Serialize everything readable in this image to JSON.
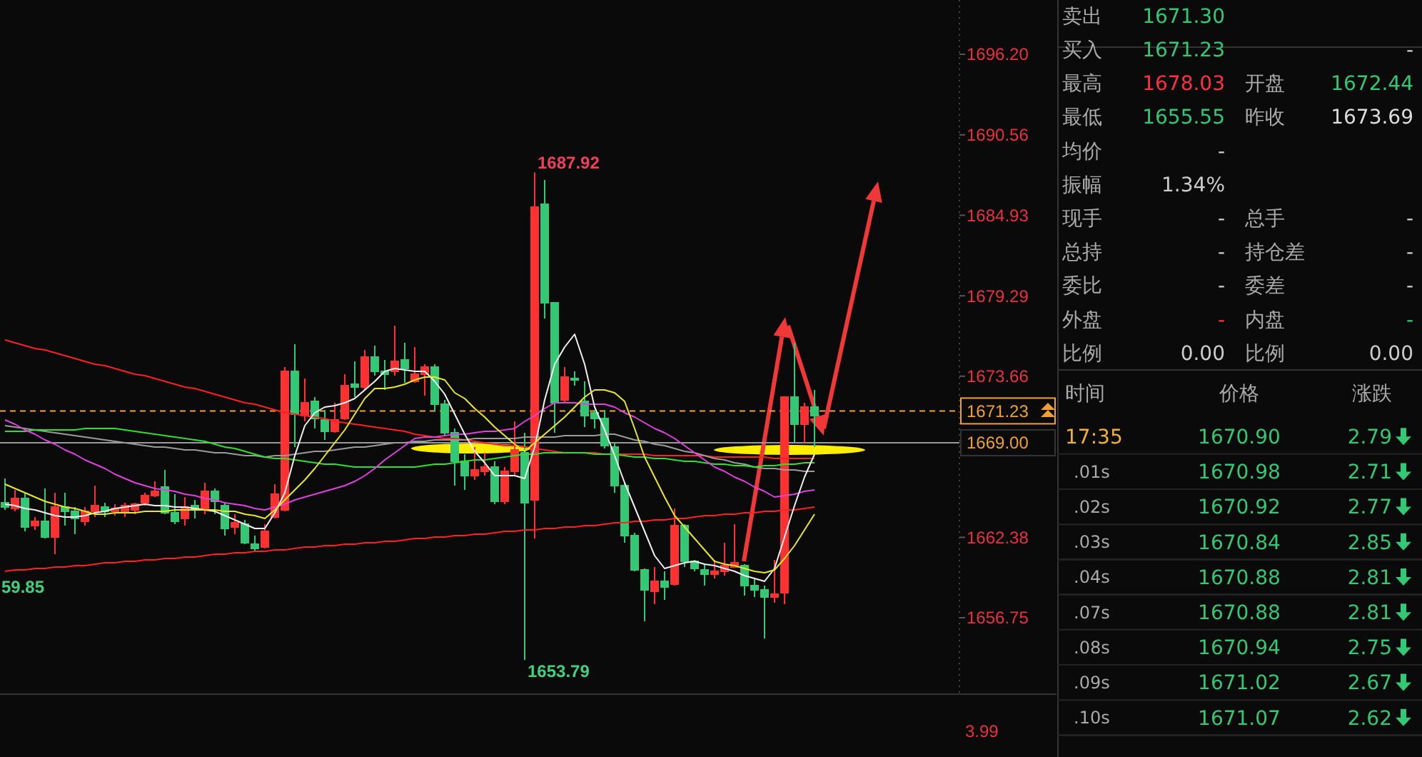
{
  "chart_data": [
    {
      "type": "candlestick",
      "categories": [
        null,
        null,
        null,
        null,
        null,
        null,
        null,
        null,
        null,
        null,
        null,
        null,
        null,
        null,
        null,
        null,
        null,
        null,
        null,
        null,
        null,
        null,
        null,
        null,
        null,
        null,
        null,
        null,
        null,
        null,
        null,
        null,
        null,
        null,
        null,
        null,
        null,
        null,
        null,
        null,
        null,
        null,
        null,
        null,
        null,
        null,
        null,
        null,
        null,
        null,
        null,
        null,
        null,
        null,
        null,
        null,
        null,
        null,
        null,
        null,
        null,
        null,
        null,
        null,
        null,
        null,
        null,
        null,
        null,
        null,
        null,
        null,
        null,
        null,
        null,
        null,
        null,
        null,
        null,
        null,
        null,
        null
      ],
      "ylim": [
        1651.5,
        1700
      ],
      "yticks": [
        {
          "value": 1696.2,
          "label": "1696.20"
        },
        {
          "value": 1690.56,
          "label": "1690.56"
        },
        {
          "value": 1684.93,
          "label": "1684.93"
        },
        {
          "value": 1679.29,
          "label": "1679.29"
        },
        {
          "value": 1673.66,
          "label": "1673.66"
        },
        {
          "value": 1662.38,
          "label": "1662.38"
        },
        {
          "value": 1656.75,
          "label": "1656.75"
        }
      ],
      "tick_labels": "y",
      "ohlc": [
        [
          1664.8,
          1666.5,
          1664.3,
          1664.5
        ],
        [
          1664.4,
          1665.7,
          1664.2,
          1665.1
        ],
        [
          1665.1,
          1665.5,
          1662.8,
          1663.1
        ],
        [
          1663.2,
          1663.8,
          1662.9,
          1663.5
        ],
        [
          1663.5,
          1665.8,
          1662.3,
          1662.4
        ],
        [
          1662.4,
          1665.5,
          1661.2,
          1664.5
        ],
        [
          1664.5,
          1665.5,
          1663.2,
          1664.2
        ],
        [
          1664.2,
          1664.5,
          1662.6,
          1663.7
        ],
        [
          1663.5,
          1664.5,
          1663.2,
          1664.2
        ],
        [
          1664.2,
          1666.0,
          1663.8,
          1664.6
        ],
        [
          1664.5,
          1664.8,
          1663.8,
          1664.2
        ],
        [
          1664.2,
          1664.7,
          1663.9,
          1664.4
        ],
        [
          1664.1,
          1664.8,
          1663.8,
          1664.6
        ],
        [
          1664.3,
          1664.8,
          1664.0,
          1664.7
        ],
        [
          1664.8,
          1665.5,
          1664.6,
          1665.3
        ],
        [
          1665.3,
          1666.3,
          1665.2,
          1665.6
        ],
        [
          1665.9,
          1667.1,
          1664.0,
          1664.1
        ],
        [
          1664.1,
          1665.4,
          1663.3,
          1663.5
        ],
        [
          1663.7,
          1665.2,
          1663.2,
          1664.5
        ],
        [
          1664.6,
          1665.0,
          1663.7,
          1664.3
        ],
        [
          1664.3,
          1666.2,
          1664.0,
          1665.6
        ],
        [
          1665.6,
          1665.8,
          1664.0,
          1664.9
        ],
        [
          1664.6,
          1664.8,
          1662.5,
          1663.0
        ],
        [
          1663.1,
          1664.0,
          1662.6,
          1663.4
        ],
        [
          1663.3,
          1663.6,
          1661.9,
          1662.0
        ],
        [
          1661.9,
          1662.5,
          1661.4,
          1661.6
        ],
        [
          1661.7,
          1663.3,
          1661.6,
          1662.8
        ],
        [
          1663.8,
          1666.1,
          1663.7,
          1665.4
        ],
        [
          1664.3,
          1674.3,
          1664.2,
          1674.0
        ],
        [
          1674.0,
          1675.9,
          1668.7,
          1671.0
        ],
        [
          1670.9,
          1673.5,
          1670.5,
          1671.8
        ],
        [
          1671.9,
          1672.2,
          1670.0,
          1670.7
        ],
        [
          1670.6,
          1671.3,
          1669.2,
          1669.8
        ],
        [
          1669.8,
          1671.8,
          1669.7,
          1670.6
        ],
        [
          1670.7,
          1673.8,
          1670.6,
          1673.0
        ],
        [
          1673.1,
          1674.7,
          1672.2,
          1672.9
        ],
        [
          1672.9,
          1675.5,
          1672.7,
          1675.0
        ],
        [
          1675.0,
          1675.8,
          1673.7,
          1674.0
        ],
        [
          1674.0,
          1674.8,
          1672.7,
          1673.8
        ],
        [
          1674.0,
          1677.2,
          1673.7,
          1674.7
        ],
        [
          1674.8,
          1676.0,
          1673.2,
          1674.2
        ],
        [
          1673.3,
          1675.7,
          1673.2,
          1673.8
        ],
        [
          1673.8,
          1674.5,
          1672.3,
          1674.3
        ],
        [
          1674.3,
          1674.5,
          1671.2,
          1671.7
        ],
        [
          1671.7,
          1672.0,
          1669.5,
          1669.7
        ],
        [
          1669.7,
          1670.0,
          1666.0,
          1667.7
        ],
        [
          1667.7,
          1668.2,
          1665.7,
          1666.7
        ],
        [
          1666.7,
          1668.7,
          1666.4,
          1667.1
        ],
        [
          1667.0,
          1668.3,
          1666.7,
          1667.3
        ],
        [
          1667.3,
          1667.7,
          1664.7,
          1664.9
        ],
        [
          1664.9,
          1667.3,
          1664.7,
          1667.0
        ],
        [
          1667.0,
          1670.5,
          1666.7,
          1668.5
        ],
        [
          1668.3,
          1669.7,
          1653.79,
          1664.8
        ],
        [
          1665.0,
          1687.92,
          1662.3,
          1685.5
        ],
        [
          1685.7,
          1687.4,
          1677.7,
          1678.8
        ],
        [
          1678.8,
          1678.8,
          1669.7,
          1671.8
        ],
        [
          1672.0,
          1674.3,
          1671.8,
          1673.6
        ],
        [
          1673.5,
          1674.0,
          1673.0,
          1673.4
        ],
        [
          1671.9,
          1673.3,
          1670.1,
          1670.9
        ],
        [
          1671.1,
          1671.3,
          1670.0,
          1670.7
        ],
        [
          1670.7,
          1671.3,
          1668.6,
          1668.8
        ],
        [
          1668.7,
          1669.0,
          1665.5,
          1666.0
        ],
        [
          1666.0,
          1666.2,
          1662.0,
          1662.5
        ],
        [
          1662.5,
          1662.7,
          1660.0,
          1660.1
        ],
        [
          1660.1,
          1660.2,
          1656.5,
          1658.7
        ],
        [
          1658.6,
          1660.3,
          1657.7,
          1659.3
        ],
        [
          1659.3,
          1660.0,
          1658.0,
          1658.9
        ],
        [
          1659.1,
          1664.4,
          1659.0,
          1663.2
        ],
        [
          1663.2,
          1663.3,
          1660.3,
          1660.7
        ],
        [
          1660.7,
          1660.8,
          1660.0,
          1660.2
        ],
        [
          1660.1,
          1660.5,
          1659.0,
          1659.8
        ],
        [
          1659.8,
          1660.8,
          1659.5,
          1660.0
        ],
        [
          1660.0,
          1662.0,
          1659.7,
          1660.4
        ],
        [
          1660.3,
          1663.3,
          1660.3,
          1660.6
        ],
        [
          1660.4,
          1660.5,
          1658.3,
          1659.0
        ],
        [
          1659.0,
          1659.5,
          1658.2,
          1658.7
        ],
        [
          1658.7,
          1659.0,
          1655.3,
          1658.2
        ],
        [
          1658.2,
          1660.8,
          1657.8,
          1658.4
        ],
        [
          1658.5,
          1672.2,
          1657.7,
          1672.2
        ],
        [
          1672.2,
          1676.0,
          1669.0,
          1670.3
        ],
        [
          1670.3,
          1671.8,
          1669.0,
          1671.5
        ],
        [
          1671.5,
          1672.7,
          1668.7,
          1670.9
        ]
      ],
      "series": [
        {
          "type": "line",
          "color": "#ff2020",
          "values": [
            1676.2,
            1676.0,
            1675.8,
            1675.6,
            1675.5,
            1675.3,
            1675.1,
            1674.9,
            1674.7,
            1674.5,
            1674.4,
            1674.2,
            1674.0,
            1673.8,
            1673.7,
            1673.5,
            1673.3,
            1673.1,
            1672.9,
            1672.8,
            1672.6,
            1672.4,
            1672.2,
            1672.0,
            1671.8,
            1671.7,
            1671.5,
            1671.3,
            1671.1,
            1671.0,
            1670.9,
            1670.8,
            1670.7,
            1670.5,
            1670.4,
            1670.3,
            1670.2,
            1670.1,
            1670.0,
            1669.9,
            1669.8,
            1669.6,
            1669.5,
            1669.4,
            1669.3,
            1669.3,
            1669.2,
            1669.1,
            1669.0,
            1668.9,
            1668.8,
            1668.8,
            1668.7,
            1668.6,
            1668.5,
            1668.4,
            1668.3,
            1668.3,
            1668.3,
            1668.3,
            1668.2,
            1668.2,
            1668.2,
            1668.2,
            1668.2,
            1668.1,
            1668.1,
            1668.1,
            1668.1,
            1668.1,
            1668.1,
            1668.0,
            1668.0,
            1668.0,
            1668.0,
            1668.0,
            1668.0,
            1667.9,
            1667.9,
            1667.9,
            1667.9,
            1667.9
          ]
        },
        {
          "type": "line",
          "color": "#ff2020",
          "values": [
            1660.0,
            1660.1,
            1660.1,
            1660.2,
            1660.2,
            1660.3,
            1660.3,
            1660.4,
            1660.4,
            1660.5,
            1660.6,
            1660.6,
            1660.7,
            1660.7,
            1660.8,
            1660.8,
            1660.9,
            1660.9,
            1661.0,
            1661.0,
            1661.1,
            1661.2,
            1661.2,
            1661.3,
            1661.3,
            1661.4,
            1661.4,
            1661.5,
            1661.5,
            1661.6,
            1661.7,
            1661.7,
            1661.8,
            1661.8,
            1661.9,
            1661.9,
            1662.0,
            1662.0,
            1662.1,
            1662.1,
            1662.2,
            1662.3,
            1662.3,
            1662.4,
            1662.4,
            1662.5,
            1662.5,
            1662.6,
            1662.6,
            1662.7,
            1662.8,
            1662.8,
            1662.9,
            1662.9,
            1663.0,
            1663.0,
            1663.1,
            1663.1,
            1663.2,
            1663.2,
            1663.3,
            1663.4,
            1663.4,
            1663.5,
            1663.5,
            1663.6,
            1663.6,
            1663.7,
            1663.7,
            1663.8,
            1663.9,
            1663.9,
            1664.0,
            1664.0,
            1664.1,
            1664.1,
            1664.2,
            1664.2,
            1664.3,
            1664.3,
            1664.4,
            1664.5
          ]
        },
        {
          "type": "line",
          "color": "#9a9a9a",
          "values": [
            1670.2,
            1670.1,
            1670.0,
            1669.9,
            1669.8,
            1669.7,
            1669.6,
            1669.5,
            1669.4,
            1669.3,
            1669.2,
            1669.1,
            1669.0,
            1668.9,
            1668.8,
            1668.7,
            1668.7,
            1668.6,
            1668.5,
            1668.5,
            1668.4,
            1668.3,
            1668.3,
            1668.2,
            1668.1,
            1668.1,
            1668.0,
            1668.1,
            1668.1,
            1668.2,
            1668.3,
            1668.4,
            1668.4,
            1668.5,
            1668.6,
            1668.7,
            1668.7,
            1668.8,
            1668.9,
            1669.0,
            1669.0,
            1669.1,
            1669.1,
            1669.2,
            1669.2,
            1669.2,
            1669.2,
            1669.3,
            1669.3,
            1669.3,
            1669.3,
            1669.3,
            1669.4,
            1669.4,
            1669.4,
            1669.4,
            1669.5,
            1669.5,
            1669.5,
            1669.5,
            1669.6,
            1669.6,
            1669.4,
            1669.2,
            1669.1,
            1668.9,
            1668.8,
            1668.6,
            1668.4,
            1668.3,
            1668.1,
            1667.9,
            1667.8,
            1667.6,
            1667.5,
            1667.3,
            1667.2,
            1667.2,
            1667.1,
            1667.1,
            1667.0,
            1667.0
          ]
        },
        {
          "type": "line",
          "color": "#30e030",
          "values": [
            1669.8,
            1669.8,
            1669.8,
            1669.9,
            1669.9,
            1669.9,
            1669.9,
            1669.9,
            1670.0,
            1670.0,
            1670.0,
            1670.0,
            1669.9,
            1669.8,
            1669.7,
            1669.6,
            1669.5,
            1669.4,
            1669.3,
            1669.2,
            1669.1,
            1668.9,
            1668.7,
            1668.6,
            1668.4,
            1668.2,
            1668.0,
            1667.9,
            1667.9,
            1667.8,
            1667.7,
            1667.6,
            1667.5,
            1667.5,
            1667.4,
            1667.3,
            1667.3,
            1667.3,
            1667.3,
            1667.3,
            1667.3,
            1667.3,
            1667.4,
            1667.5,
            1667.5,
            1667.6,
            1667.7,
            1667.8,
            1667.8,
            1667.9,
            1668.0,
            1668.1,
            1668.2,
            1668.2,
            1668.3,
            1668.3,
            1668.3,
            1668.3,
            1668.3,
            1668.2,
            1668.2,
            1668.2,
            1668.1,
            1668.0,
            1668.0,
            1667.9,
            1667.9,
            1667.8,
            1667.7,
            1667.7,
            1667.6,
            1667.5,
            1667.5,
            1667.4,
            1667.4,
            1667.3,
            1667.4,
            1667.4,
            1667.5,
            1667.5,
            1667.6,
            1667.6
          ]
        },
        {
          "type": "line",
          "color": "#e040e0",
          "values": [
            1670.6,
            1670.3,
            1669.9,
            1669.6,
            1669.2,
            1668.9,
            1668.5,
            1668.2,
            1667.8,
            1667.5,
            1667.2,
            1666.8,
            1666.5,
            1666.2,
            1666.0,
            1665.8,
            1665.7,
            1665.6,
            1665.4,
            1665.3,
            1665.1,
            1665.0,
            1664.8,
            1664.7,
            1664.6,
            1664.4,
            1664.3,
            1664.5,
            1664.7,
            1665.0,
            1665.2,
            1665.4,
            1665.6,
            1665.8,
            1666.0,
            1666.3,
            1666.7,
            1667.2,
            1667.8,
            1668.3,
            1668.8,
            1669.3,
            1669.4,
            1669.4,
            1669.5,
            1669.6,
            1669.6,
            1669.7,
            1669.8,
            1669.8,
            1669.9,
            1670.0,
            1670.5,
            1670.9,
            1671.4,
            1671.8,
            1671.8,
            1671.8,
            1671.7,
            1671.7,
            1671.7,
            1671.5,
            1671.1,
            1670.8,
            1670.4,
            1670.0,
            1669.7,
            1669.3,
            1668.8,
            1668.3,
            1667.8,
            1667.3,
            1667.0,
            1666.6,
            1666.3,
            1665.9,
            1665.6,
            1665.2,
            1665.3,
            1665.4,
            1665.6,
            1665.7
          ]
        },
        {
          "type": "line",
          "color": "#f0f0f0",
          "values": [
            1664.7,
            1664.6,
            1664.4,
            1664.3,
            1664.1,
            1663.9,
            1663.8,
            1663.8,
            1663.9,
            1664.1,
            1664.2,
            1664.4,
            1664.5,
            1664.6,
            1664.7,
            1664.6,
            1664.6,
            1664.5,
            1664.5,
            1664.4,
            1664.3,
            1664.2,
            1663.9,
            1663.6,
            1663.3,
            1663.0,
            1663.0,
            1664.1,
            1665.5,
            1668.1,
            1670.2,
            1671.1,
            1671.5,
            1671.6,
            1671.8,
            1672.1,
            1672.7,
            1673.3,
            1674.0,
            1674.2,
            1674.1,
            1674.0,
            1674.0,
            1673.3,
            1672.4,
            1671.0,
            1669.6,
            1668.4,
            1667.6,
            1666.7,
            1666.7,
            1666.7,
            1666.5,
            1668.7,
            1672.0,
            1674.5,
            1675.7,
            1676.6,
            1674.5,
            1671.5,
            1669.9,
            1668.1,
            1666.2,
            1664.5,
            1662.8,
            1661.1,
            1660.2,
            1660.4,
            1660.6,
            1660.7,
            1660.5,
            1660.4,
            1660.2,
            1660.0,
            1659.7,
            1659.5,
            1659.3,
            1660.2,
            1662.4,
            1664.6,
            1666.6,
            1668.2
          ]
        },
        {
          "type": "line",
          "color": "#e8e820",
          "values": [
            1666.1,
            1665.8,
            1665.5,
            1665.2,
            1664.9,
            1664.7,
            1664.5,
            1664.4,
            1664.2,
            1664.0,
            1664.0,
            1664.1,
            1664.1,
            1664.1,
            1664.2,
            1664.2,
            1664.2,
            1664.3,
            1664.3,
            1664.3,
            1664.3,
            1664.3,
            1664.2,
            1664.2,
            1664.0,
            1663.9,
            1663.7,
            1664.3,
            1665.0,
            1665.7,
            1666.4,
            1667.2,
            1668.1,
            1669.0,
            1669.9,
            1671.0,
            1672.1,
            1672.8,
            1672.8,
            1672.9,
            1673.1,
            1673.4,
            1673.6,
            1673.6,
            1673.4,
            1672.5,
            1672.1,
            1671.4,
            1670.8,
            1670.1,
            1669.5,
            1668.9,
            1668.4,
            1669.0,
            1669.6,
            1670.2,
            1670.8,
            1671.5,
            1672.2,
            1672.7,
            1672.7,
            1672.5,
            1671.9,
            1670.0,
            1668.0,
            1666.6,
            1665.2,
            1663.9,
            1663.1,
            1662.3,
            1661.5,
            1660.7,
            1660.5,
            1660.4,
            1660.2,
            1660.0,
            1659.9,
            1660.1,
            1660.9,
            1661.8,
            1662.9,
            1664.0
          ]
        }
      ],
      "ref_lines": [
        {
          "axis": "y",
          "value": 1671.23,
          "label": "1671.23",
          "color": "#f0a030",
          "line_style": "dashed"
        },
        {
          "axis": "y",
          "value": 1669.0,
          "label": "1669.00",
          "color": "#9a9a9a",
          "line_style": "solid"
        }
      ],
      "annotations": [
        "1687.92",
        "1653.79",
        "59.85",
        "3.99"
      ]
    },
    {
      "type": "other",
      "annotations": [
        "卖出",
        "1671.30",
        null,
        null,
        "买入",
        "1671.23",
        null,
        "-",
        "最高",
        "1678.03",
        "开盘",
        "1672.44",
        "最低",
        "1655.55",
        "昨收",
        "1673.69",
        "均价",
        "-",
        null,
        null,
        "振幅",
        "1.34%",
        null,
        null,
        "现手",
        "-",
        "总手",
        "-",
        "总持",
        "-",
        "持仓差",
        "-",
        "委比",
        "-",
        "委差",
        "-",
        "外盘",
        "-",
        "内盘",
        "-",
        "比例",
        "0.00",
        "比例",
        "0.00"
      ]
    },
    {
      "type": "other",
      "annotations": [
        "时间",
        "价格",
        "涨跌",
        "17:35",
        "1670.90",
        "2.79",
        ".01s",
        "1670.98",
        "2.71",
        ".02s",
        "1670.92",
        "2.77",
        ".03s",
        "1670.84",
        "2.85",
        ".04s",
        "1670.88",
        "2.81",
        ".07s",
        "1670.88",
        "2.81",
        ".08s",
        "1670.94",
        "2.75",
        ".09s",
        "1671.02",
        "2.67",
        ".10s",
        "1671.07",
        "2.62"
      ]
    }
  ]
}
